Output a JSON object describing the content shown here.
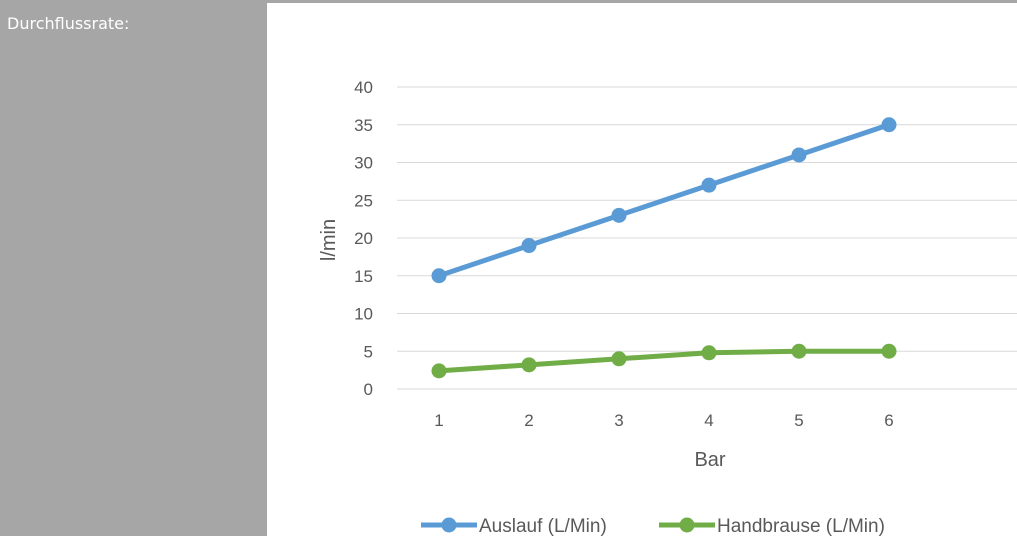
{
  "sidebar": {
    "label": "Durchflussrate:"
  },
  "colors": {
    "sidebar_bg": "#a6a6a6",
    "grid": "#d9d9d9",
    "axis_text": "#595959",
    "series_blue": "#5b9bd5",
    "series_green": "#70ad47"
  },
  "chart_data": {
    "type": "line",
    "title": "",
    "xlabel": "Bar",
    "ylabel": "l/min",
    "categories": [
      "1",
      "2",
      "3",
      "4",
      "5",
      "6"
    ],
    "ylim": [
      0,
      40
    ],
    "yticks": [
      "0",
      "5",
      "10",
      "15",
      "20",
      "25",
      "30",
      "35",
      "40"
    ],
    "grid": true,
    "legend_position": "bottom",
    "series": [
      {
        "name": "Auslauf (L/Min)",
        "color": "#5b9bd5",
        "values": [
          15,
          19,
          23,
          27,
          31,
          35
        ]
      },
      {
        "name": "Handbrause (L/Min)",
        "color": "#70ad47",
        "values": [
          2.4,
          3.2,
          4,
          4.8,
          5,
          5
        ]
      }
    ]
  }
}
